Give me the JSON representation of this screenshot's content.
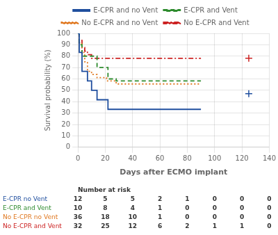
{
  "chart_data": {
    "type": "step",
    "xlabel": "Days after ECMO implant",
    "ylabel": "Survival probability (%)",
    "xlim": [
      0,
      140
    ],
    "ylim": [
      0,
      100
    ],
    "xticks": [
      0,
      20,
      40,
      60,
      80,
      100,
      120,
      140
    ],
    "yticks": [
      0,
      10,
      20,
      30,
      40,
      50,
      60,
      70,
      80,
      90,
      100
    ],
    "grid": true,
    "legend": "top",
    "series": [
      {
        "name": "E-CPR and no Vent",
        "color": "#1f4e9e",
        "line_style": "solid",
        "x": [
          0,
          1,
          3,
          7,
          10,
          14,
          22,
          47,
          90
        ],
        "values": [
          100,
          83.3,
          66.7,
          58.3,
          50.0,
          41.7,
          33.3,
          33.3,
          33.3
        ]
      },
      {
        "name": "E-CPR and Vent",
        "color": "#2e8b2e",
        "line_style": "dashed",
        "x": [
          0,
          1,
          3,
          14,
          22,
          28,
          90
        ],
        "values": [
          100,
          90.0,
          80.0,
          70.0,
          60.0,
          58.3,
          58.3
        ]
      },
      {
        "name": "No E-CPR and no Vent",
        "color": "#e07820",
        "line_style": "dotted",
        "x": [
          0,
          1,
          3,
          5,
          7,
          10,
          14,
          21,
          28,
          42,
          90
        ],
        "values": [
          100,
          91.7,
          83.3,
          75.0,
          66.7,
          63.9,
          61.1,
          58.3,
          55.6,
          55.6,
          55.6
        ]
      },
      {
        "name": "No E-CPR and Vent",
        "color": "#cc2222",
        "line_style": "dashdot",
        "x": [
          0,
          1,
          3,
          5,
          7,
          10,
          14,
          90
        ],
        "values": [
          100,
          93.8,
          87.5,
          84.4,
          81.3,
          78.1,
          78.1,
          78.1
        ]
      },
      {
        "type": "scatter",
        "marker": "plus",
        "color": "#cc2222",
        "x": [
          125
        ],
        "values": [
          78.1
        ]
      },
      {
        "type": "scatter",
        "marker": "plus",
        "color": "#1f4e9e",
        "x": [
          125
        ],
        "values": [
          47.0
        ]
      }
    ],
    "risk_table": {
      "title": "Number at risk",
      "x": [
        0,
        20,
        40,
        60,
        80,
        100,
        120,
        140
      ],
      "rows": [
        {
          "name": "E-CPR no Vent",
          "color": "#1f4e9e",
          "values": [
            12,
            5,
            5,
            2,
            1,
            0,
            0,
            0
          ]
        },
        {
          "name": "E-CPR and Vent",
          "color": "#2e8b2e",
          "values": [
            10,
            8,
            4,
            1,
            0,
            0,
            0,
            0
          ]
        },
        {
          "name": "No E-CPR no Vent",
          "color": "#e07820",
          "values": [
            36,
            18,
            10,
            1,
            0,
            0,
            0,
            0
          ]
        },
        {
          "name": "No E-CPR and Vent",
          "color": "#cc2222",
          "values": [
            32,
            25,
            12,
            6,
            2,
            1,
            1,
            0
          ]
        }
      ]
    }
  }
}
